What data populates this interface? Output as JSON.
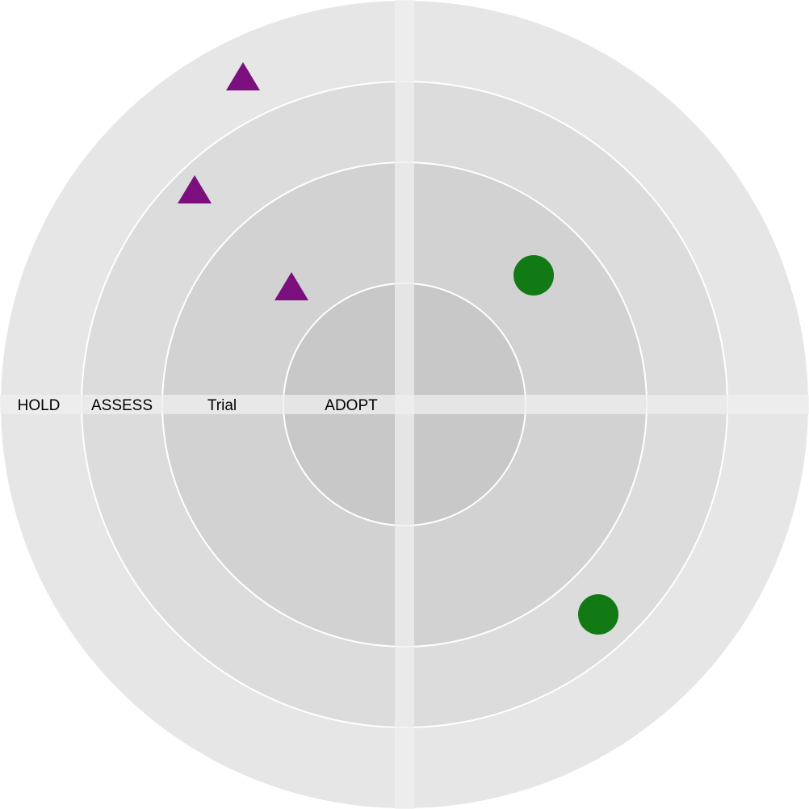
{
  "rings": [
    {
      "label": "ADOPT",
      "color": "#c8c8c8"
    },
    {
      "label": "Trial",
      "color": "#d2d2d2"
    },
    {
      "label": "ASSESS",
      "color": "#dcdcdc"
    },
    {
      "label": "HOLD",
      "color": "#e6e6e6"
    }
  ],
  "ring_line_color": "#ffffff",
  "axis_band_color": "#efefef",
  "blips": [
    {
      "shape": "triangle",
      "color": "#7b0f7d",
      "quadrant": "top-left",
      "ring": "HOLD"
    },
    {
      "shape": "triangle",
      "color": "#7b0f7d",
      "quadrant": "top-left",
      "ring": "ASSESS"
    },
    {
      "shape": "triangle",
      "color": "#7b0f7d",
      "quadrant": "top-left",
      "ring": "Trial"
    },
    {
      "shape": "circle",
      "color": "#127a15",
      "quadrant": "top-right",
      "ring": "Trial"
    },
    {
      "shape": "circle",
      "color": "#127a15",
      "quadrant": "bottom-right",
      "ring": "ASSESS"
    }
  ]
}
